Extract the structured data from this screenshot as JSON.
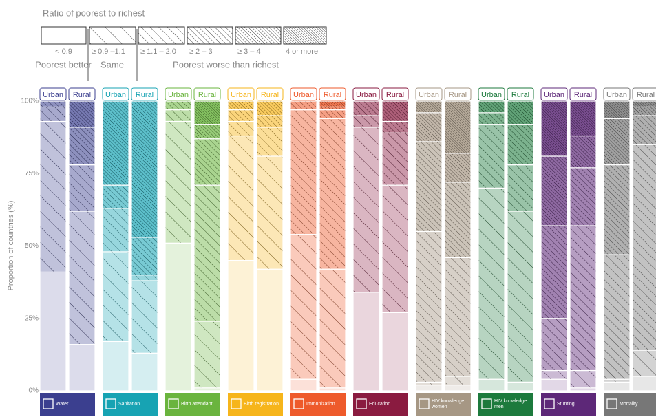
{
  "chart_data": {
    "type": "stacked_bar",
    "title": "Ratio of poorest to richest",
    "legend_groups": [
      "Poorest better",
      "Same",
      "Poorest worse than richest"
    ],
    "subcategories": [
      "Urban",
      "Rural"
    ],
    "groups": [
      {
        "name": "Water",
        "color": "#3b3f8f"
      },
      {
        "name": "Sanitation",
        "color": "#17a3b3"
      },
      {
        "name": "Birth attendant",
        "color": "#6ab43e"
      },
      {
        "name": "Birth registration",
        "color": "#f6b51b"
      },
      {
        "name": "Immunization",
        "color": "#ee5a2b"
      },
      {
        "name": "Education",
        "color": "#8a1b40"
      },
      {
        "name": "HIV knowledge women",
        "color": "#a69784"
      },
      {
        "name": "HIV knowledge men",
        "color": "#1d7a3d"
      },
      {
        "name": "Stunting",
        "color": "#5d2878"
      },
      {
        "name": "Mortality",
        "color": "#777777"
      }
    ],
    "series": [
      {
        "name": "< 0.9",
        "values": [
          [
            41,
            16
          ],
          [
            17,
            13
          ],
          [
            51,
            1
          ],
          [
            45,
            42
          ],
          [
            4,
            1
          ],
          [
            34,
            27
          ],
          [
            2,
            2
          ],
          [
            4,
            3
          ],
          [
            4,
            1
          ],
          [
            3,
            5
          ]
        ]
      },
      {
        "name": "≥ 0.9 –1.1",
        "values": [
          [
            52,
            46
          ],
          [
            31,
            25
          ],
          [
            42,
            23
          ],
          [
            43,
            39
          ],
          [
            50,
            41
          ],
          [
            57,
            44
          ],
          [
            1,
            3
          ],
          [
            66,
            59
          ],
          [
            3,
            6
          ],
          [
            1,
            9
          ]
        ]
      },
      {
        "name": "≥ 1.1 – 2.0",
        "values": [
          [
            5,
            16
          ],
          [
            15,
            2
          ],
          [
            4,
            47
          ],
          [
            5,
            10
          ],
          [
            43,
            52
          ],
          [
            4,
            18
          ],
          [
            52,
            41
          ],
          [
            22,
            16
          ],
          [
            18,
            50
          ],
          [
            43,
            71
          ]
        ]
      },
      {
        "name": "≥ 2 – 3",
        "values": [
          [
            2,
            13
          ],
          [
            8,
            13
          ],
          [
            3,
            16
          ],
          [
            4,
            4
          ],
          [
            3,
            3
          ],
          [
            5,
            4
          ],
          [
            31,
            26
          ],
          [
            4,
            14
          ],
          [
            32,
            20
          ],
          [
            31,
            10
          ]
        ]
      },
      {
        "name": "≥ 3 – 4",
        "values": [
          [
            0,
            9
          ],
          [
            29,
            47
          ],
          [
            0,
            5
          ],
          [
            3,
            5
          ],
          [
            0,
            1
          ],
          [
            0,
            7
          ],
          [
            10,
            10
          ],
          [
            4,
            8
          ],
          [
            24,
            11
          ],
          [
            16,
            3
          ]
        ]
      },
      {
        "name": "4 or more",
        "values": [
          [
            0,
            0
          ],
          [
            0,
            0
          ],
          [
            0,
            8
          ],
          [
            0,
            0
          ],
          [
            0,
            2
          ],
          [
            0,
            0
          ],
          [
            4,
            18
          ],
          [
            0,
            0
          ],
          [
            19,
            12
          ],
          [
            6,
            2
          ]
        ]
      }
    ],
    "y_label": "Proportion of countries (%)",
    "ylim": [
      0,
      100
    ],
    "yticks": [
      {
        "value": 0,
        "label": "0%"
      },
      {
        "value": 25,
        "label": "25%"
      },
      {
        "value": 50,
        "label": "50%"
      },
      {
        "value": 75,
        "label": "75%"
      },
      {
        "value": 100,
        "label": "100%"
      }
    ]
  }
}
